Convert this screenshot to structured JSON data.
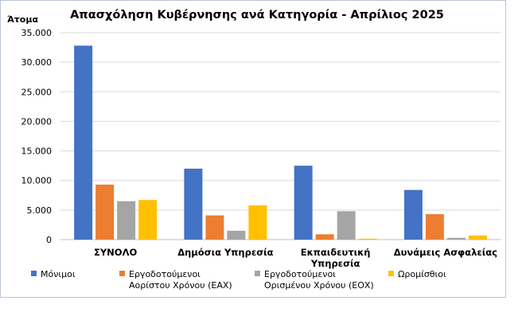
{
  "chart_data": {
    "type": "bar",
    "title": "Απασχόληση Κυβέρνησης ανά Κατηγορία - Απρίλιος 2025",
    "ylabel": "Άτομα",
    "xlabel": "",
    "ylim": [
      0,
      35000
    ],
    "yticks": [
      "0",
      "5.000",
      "10.000",
      "15.000",
      "20.000",
      "25.000",
      "30.000",
      "35.000"
    ],
    "grid": true,
    "legend_position": "bottom",
    "categories": [
      [
        "ΣΥΝΟΛΟ"
      ],
      [
        "Δημόσια Υπηρεσία"
      ],
      [
        "Εκπαιδευτική",
        "Υπηρεσία"
      ],
      [
        "Δυνάμεις Ασφαλείας"
      ]
    ],
    "series": [
      {
        "name": "Μόνιμοι",
        "legend_lines": [
          "Μόνιμοι"
        ],
        "color": "#4472C4",
        "values": [
          32800,
          12000,
          12500,
          8400
        ]
      },
      {
        "name": "Εργοδοτούμενοι Αορίστου Χρόνου (ΕΑΧ)",
        "legend_lines": [
          "Εργοδοτούμενοι",
          "Αορίστου Χρόνου (ΕΑΧ)"
        ],
        "color": "#ED7D31",
        "values": [
          9300,
          4100,
          900,
          4300
        ]
      },
      {
        "name": "Εργοδοτούμενοι Ορισμένου Χρόνου (ΕΟΧ)",
        "legend_lines": [
          "Εργοδοτούμενοι",
          "Ορισμένου Χρόνου (ΕΟΧ)"
        ],
        "color": "#A5A5A5",
        "values": [
          6500,
          1500,
          4800,
          300
        ]
      },
      {
        "name": "Ωρομίσθιοι",
        "legend_lines": [
          "Ωρομίσθιοι"
        ],
        "color": "#FFC000",
        "values": [
          6700,
          5800,
          150,
          700
        ]
      }
    ]
  }
}
